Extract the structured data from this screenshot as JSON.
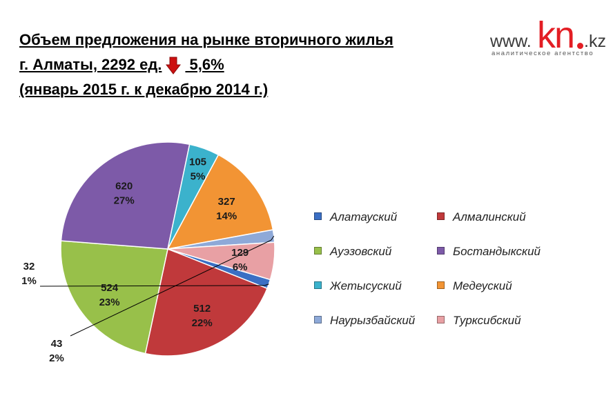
{
  "header": {
    "line1": "Объем предложения на  рынке вторичного жилья",
    "line2a": " г. Алматы,  2292 ед.",
    "line2b": " 5,6%",
    "line3": "(январь 2015 г. к декабрю 2014 г.)"
  },
  "logo": {
    "www": "www.",
    "kn": "kn",
    "kz": ".kz",
    "subtitle": "аналитическое агентство"
  },
  "colors": {
    "arrow": "#cc1010"
  },
  "chart_data": {
    "type": "pie",
    "categories": [
      "Алатауский",
      "Алмалинский",
      "Ауэзовский",
      "Бостандыкский",
      "Жетысуский",
      "Медеуский",
      "Наурызбайский",
      "Турксибский"
    ],
    "values": [
      32,
      512,
      524,
      620,
      105,
      327,
      43,
      129
    ],
    "percent_labels": [
      "1%",
      "22%",
      "23%",
      "27%",
      "5%",
      "14%",
      "2%",
      "6%"
    ],
    "colors": [
      "#3b6fc4",
      "#c0393b",
      "#98c04a",
      "#7d5aa8",
      "#3bb2cc",
      "#f29434",
      "#8ea9d8",
      "#e8a0a4"
    ],
    "legend_position": "right"
  }
}
